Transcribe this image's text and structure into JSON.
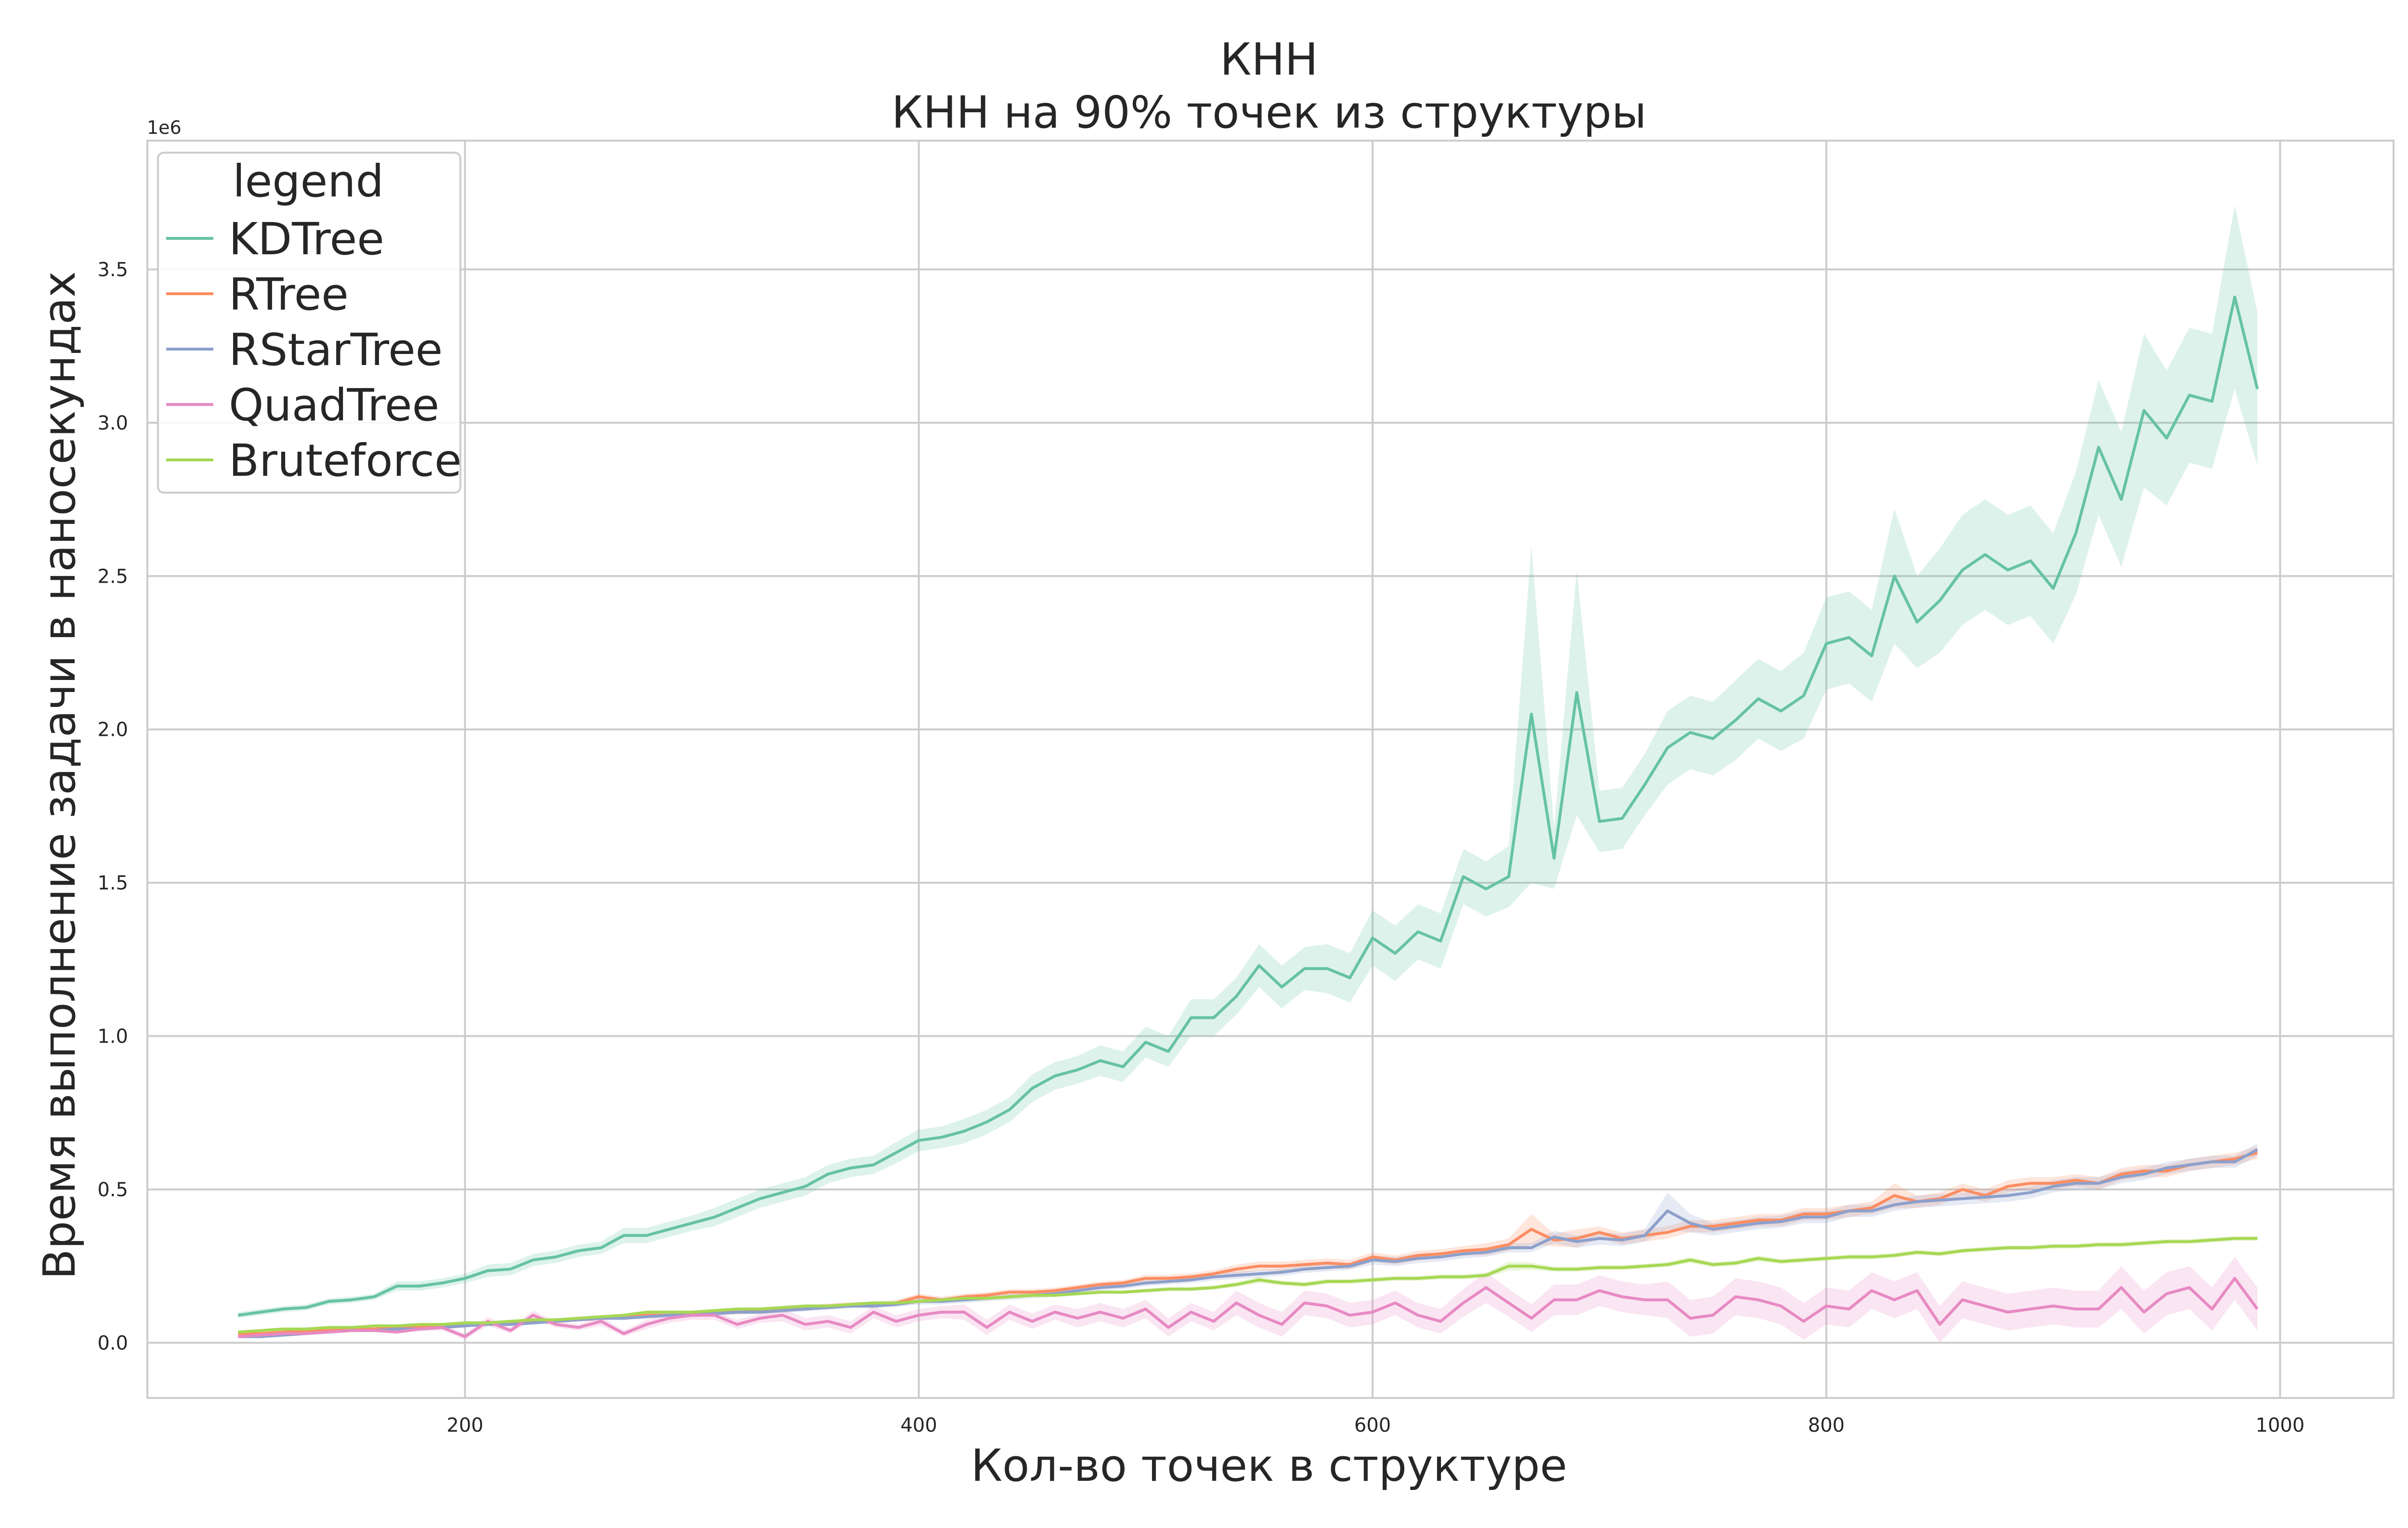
{
  "chart_data": {
    "type": "line",
    "title": "КНН",
    "subtitle": "КНН на 90% точек из структуры",
    "xlabel": "Кол-во точек в структуре",
    "ylabel": "Время выполнение задачи в наносекундах",
    "y_offset_label": "1e6",
    "xlim": [
      60,
      1050
    ],
    "ylim": [
      -0.18,
      3.92
    ],
    "x_ticks": [
      200,
      400,
      600,
      800,
      1000
    ],
    "y_ticks": [
      0.0,
      0.5,
      1.0,
      1.5,
      2.0,
      2.5,
      3.0,
      3.5
    ],
    "x_tick_labels": [
      "200",
      "400",
      "600",
      "800",
      "1000"
    ],
    "y_tick_labels": [
      "0.0",
      "0.5",
      "1.0",
      "1.5",
      "2.0",
      "2.5",
      "3.0",
      "3.5"
    ],
    "grid": true,
    "legend_title": "legend",
    "legend_position": "top-left",
    "x": [
      100,
      110,
      120,
      130,
      140,
      150,
      160,
      170,
      180,
      190,
      200,
      210,
      220,
      230,
      240,
      250,
      260,
      270,
      280,
      290,
      300,
      310,
      320,
      330,
      340,
      350,
      360,
      370,
      380,
      390,
      400,
      410,
      420,
      430,
      440,
      450,
      460,
      470,
      480,
      490,
      500,
      510,
      520,
      530,
      540,
      550,
      560,
      570,
      580,
      590,
      600,
      610,
      620,
      630,
      640,
      650,
      660,
      670,
      680,
      690,
      700,
      710,
      720,
      730,
      740,
      750,
      760,
      770,
      780,
      790,
      800,
      810,
      820,
      830,
      840,
      850,
      860,
      870,
      880,
      890,
      900,
      910,
      920,
      930,
      940,
      950,
      960,
      970,
      980,
      990
    ],
    "series": [
      {
        "name": "KDTree",
        "color": "#66c2a5",
        "values": [
          0.09,
          0.1,
          0.11,
          0.115,
          0.135,
          0.14,
          0.15,
          0.185,
          0.185,
          0.195,
          0.21,
          0.235,
          0.24,
          0.27,
          0.28,
          0.3,
          0.31,
          0.35,
          0.35,
          0.37,
          0.39,
          0.41,
          0.44,
          0.47,
          0.49,
          0.51,
          0.55,
          0.57,
          0.58,
          0.62,
          0.66,
          0.67,
          0.69,
          0.72,
          0.76,
          0.83,
          0.87,
          0.89,
          0.92,
          0.9,
          0.98,
          0.95,
          1.06,
          1.06,
          1.13,
          1.23,
          1.16,
          1.22,
          1.22,
          1.19,
          1.32,
          1.27,
          1.34,
          1.31,
          1.52,
          1.48,
          1.52,
          2.05,
          1.58,
          2.12,
          1.7,
          1.71,
          1.82,
          1.94,
          1.99,
          1.97,
          2.03,
          2.1,
          2.06,
          2.11,
          2.28,
          2.3,
          2.24,
          2.5,
          2.35,
          2.42,
          2.52,
          2.57,
          2.52,
          2.55,
          2.46,
          2.64,
          2.92,
          2.75,
          3.04,
          2.95,
          3.09,
          3.07,
          3.41,
          3.11
        ],
        "ci_width": [
          0.01,
          0.01,
          0.01,
          0.01,
          0.01,
          0.01,
          0.01,
          0.015,
          0.015,
          0.015,
          0.015,
          0.02,
          0.02,
          0.02,
          0.02,
          0.02,
          0.02,
          0.025,
          0.025,
          0.025,
          0.025,
          0.03,
          0.03,
          0.03,
          0.03,
          0.03,
          0.03,
          0.03,
          0.03,
          0.035,
          0.035,
          0.035,
          0.04,
          0.04,
          0.04,
          0.045,
          0.045,
          0.045,
          0.05,
          0.05,
          0.05,
          0.05,
          0.06,
          0.06,
          0.06,
          0.07,
          0.07,
          0.07,
          0.08,
          0.08,
          0.09,
          0.09,
          0.09,
          0.09,
          0.09,
          0.09,
          0.1,
          0.55,
          0.1,
          0.4,
          0.1,
          0.1,
          0.1,
          0.12,
          0.12,
          0.12,
          0.13,
          0.13,
          0.13,
          0.14,
          0.15,
          0.15,
          0.15,
          0.22,
          0.15,
          0.17,
          0.18,
          0.18,
          0.18,
          0.18,
          0.18,
          0.2,
          0.22,
          0.22,
          0.25,
          0.22,
          0.22,
          0.22,
          0.3,
          0.25
        ]
      },
      {
        "name": "RTree",
        "color": "#fc8d62",
        "values": [
          0.03,
          0.03,
          0.035,
          0.04,
          0.04,
          0.045,
          0.045,
          0.05,
          0.05,
          0.055,
          0.06,
          0.065,
          0.065,
          0.07,
          0.07,
          0.075,
          0.08,
          0.085,
          0.09,
          0.09,
          0.095,
          0.1,
          0.1,
          0.105,
          0.11,
          0.115,
          0.12,
          0.125,
          0.125,
          0.13,
          0.15,
          0.14,
          0.15,
          0.155,
          0.165,
          0.165,
          0.17,
          0.18,
          0.19,
          0.195,
          0.21,
          0.21,
          0.215,
          0.225,
          0.24,
          0.25,
          0.25,
          0.255,
          0.26,
          0.255,
          0.28,
          0.27,
          0.285,
          0.29,
          0.3,
          0.305,
          0.32,
          0.37,
          0.335,
          0.34,
          0.36,
          0.34,
          0.35,
          0.36,
          0.38,
          0.38,
          0.39,
          0.4,
          0.4,
          0.42,
          0.42,
          0.43,
          0.44,
          0.48,
          0.46,
          0.47,
          0.5,
          0.48,
          0.51,
          0.52,
          0.52,
          0.53,
          0.52,
          0.55,
          0.56,
          0.56,
          0.58,
          0.59,
          0.6,
          0.62
        ],
        "ci_width": [
          0.005,
          0.005,
          0.005,
          0.005,
          0.005,
          0.005,
          0.005,
          0.005,
          0.005,
          0.005,
          0.006,
          0.006,
          0.006,
          0.006,
          0.006,
          0.006,
          0.007,
          0.007,
          0.007,
          0.007,
          0.007,
          0.007,
          0.008,
          0.008,
          0.008,
          0.008,
          0.008,
          0.008,
          0.008,
          0.01,
          0.01,
          0.01,
          0.01,
          0.01,
          0.01,
          0.01,
          0.01,
          0.01,
          0.01,
          0.01,
          0.012,
          0.012,
          0.012,
          0.012,
          0.015,
          0.015,
          0.015,
          0.015,
          0.015,
          0.015,
          0.015,
          0.015,
          0.015,
          0.015,
          0.015,
          0.02,
          0.02,
          0.05,
          0.02,
          0.03,
          0.02,
          0.02,
          0.02,
          0.02,
          0.02,
          0.02,
          0.02,
          0.02,
          0.02,
          0.02,
          0.02,
          0.02,
          0.02,
          0.04,
          0.02,
          0.02,
          0.02,
          0.02,
          0.02,
          0.02,
          0.02,
          0.02,
          0.02,
          0.02,
          0.02,
          0.02,
          0.02,
          0.02,
          0.02,
          0.02
        ]
      },
      {
        "name": "RStarTree",
        "color": "#8da0cb",
        "values": [
          0.02,
          0.02,
          0.025,
          0.03,
          0.035,
          0.04,
          0.04,
          0.045,
          0.045,
          0.05,
          0.055,
          0.06,
          0.06,
          0.065,
          0.07,
          0.075,
          0.08,
          0.08,
          0.085,
          0.09,
          0.09,
          0.095,
          0.1,
          0.1,
          0.105,
          0.11,
          0.115,
          0.12,
          0.12,
          0.125,
          0.135,
          0.135,
          0.14,
          0.145,
          0.15,
          0.155,
          0.16,
          0.17,
          0.18,
          0.185,
          0.195,
          0.2,
          0.205,
          0.215,
          0.22,
          0.225,
          0.23,
          0.24,
          0.245,
          0.25,
          0.27,
          0.265,
          0.275,
          0.28,
          0.29,
          0.295,
          0.31,
          0.31,
          0.345,
          0.33,
          0.34,
          0.335,
          0.35,
          0.43,
          0.39,
          0.37,
          0.38,
          0.39,
          0.395,
          0.41,
          0.41,
          0.43,
          0.43,
          0.45,
          0.46,
          0.465,
          0.47,
          0.475,
          0.48,
          0.49,
          0.51,
          0.52,
          0.52,
          0.54,
          0.55,
          0.57,
          0.58,
          0.59,
          0.59,
          0.63
        ],
        "ci_width": [
          0.005,
          0.005,
          0.005,
          0.005,
          0.005,
          0.005,
          0.005,
          0.005,
          0.005,
          0.005,
          0.005,
          0.005,
          0.006,
          0.006,
          0.006,
          0.006,
          0.006,
          0.006,
          0.006,
          0.007,
          0.007,
          0.007,
          0.007,
          0.007,
          0.008,
          0.008,
          0.008,
          0.008,
          0.008,
          0.008,
          0.01,
          0.01,
          0.01,
          0.01,
          0.01,
          0.01,
          0.01,
          0.01,
          0.01,
          0.01,
          0.01,
          0.01,
          0.01,
          0.012,
          0.012,
          0.012,
          0.012,
          0.012,
          0.012,
          0.012,
          0.015,
          0.015,
          0.015,
          0.015,
          0.015,
          0.015,
          0.015,
          0.015,
          0.02,
          0.02,
          0.02,
          0.02,
          0.02,
          0.06,
          0.03,
          0.02,
          0.02,
          0.02,
          0.02,
          0.02,
          0.02,
          0.02,
          0.02,
          0.02,
          0.02,
          0.02,
          0.02,
          0.02,
          0.02,
          0.02,
          0.02,
          0.02,
          0.02,
          0.02,
          0.02,
          0.02,
          0.02,
          0.02,
          0.02,
          0.02
        ]
      },
      {
        "name": "QuadTree",
        "color": "#e78ac3",
        "values": [
          0.02,
          0.025,
          0.03,
          0.03,
          0.035,
          0.04,
          0.04,
          0.035,
          0.045,
          0.05,
          0.02,
          0.07,
          0.04,
          0.09,
          0.06,
          0.05,
          0.07,
          0.03,
          0.06,
          0.08,
          0.09,
          0.09,
          0.06,
          0.08,
          0.09,
          0.06,
          0.07,
          0.05,
          0.1,
          0.07,
          0.09,
          0.1,
          0.1,
          0.05,
          0.1,
          0.07,
          0.1,
          0.08,
          0.1,
          0.08,
          0.11,
          0.05,
          0.1,
          0.07,
          0.13,
          0.09,
          0.06,
          0.13,
          0.12,
          0.09,
          0.1,
          0.13,
          0.09,
          0.07,
          0.13,
          0.18,
          0.13,
          0.08,
          0.14,
          0.14,
          0.17,
          0.15,
          0.14,
          0.14,
          0.08,
          0.09,
          0.15,
          0.14,
          0.12,
          0.07,
          0.12,
          0.11,
          0.17,
          0.14,
          0.17,
          0.06,
          0.14,
          0.12,
          0.1,
          0.11,
          0.12,
          0.11,
          0.11,
          0.18,
          0.1,
          0.16,
          0.18,
          0.11,
          0.21,
          0.11
        ],
        "ci_width": [
          0.005,
          0.005,
          0.005,
          0.005,
          0.005,
          0.005,
          0.005,
          0.005,
          0.008,
          0.01,
          0.01,
          0.015,
          0.01,
          0.015,
          0.01,
          0.01,
          0.015,
          0.01,
          0.015,
          0.015,
          0.015,
          0.015,
          0.015,
          0.015,
          0.02,
          0.02,
          0.02,
          0.02,
          0.02,
          0.02,
          0.02,
          0.02,
          0.025,
          0.025,
          0.025,
          0.025,
          0.025,
          0.03,
          0.03,
          0.03,
          0.03,
          0.03,
          0.03,
          0.03,
          0.04,
          0.04,
          0.04,
          0.04,
          0.04,
          0.04,
          0.04,
          0.04,
          0.04,
          0.04,
          0.045,
          0.05,
          0.045,
          0.045,
          0.05,
          0.05,
          0.05,
          0.05,
          0.05,
          0.06,
          0.06,
          0.06,
          0.06,
          0.06,
          0.06,
          0.06,
          0.06,
          0.06,
          0.06,
          0.06,
          0.06,
          0.06,
          0.06,
          0.06,
          0.06,
          0.06,
          0.06,
          0.06,
          0.06,
          0.07,
          0.07,
          0.07,
          0.07,
          0.07,
          0.07,
          0.07
        ]
      },
      {
        "name": "Bruteforce",
        "color": "#a6d854",
        "values": [
          0.035,
          0.04,
          0.045,
          0.045,
          0.05,
          0.05,
          0.055,
          0.055,
          0.06,
          0.06,
          0.065,
          0.065,
          0.07,
          0.075,
          0.075,
          0.08,
          0.085,
          0.09,
          0.1,
          0.1,
          0.1,
          0.105,
          0.11,
          0.11,
          0.115,
          0.12,
          0.12,
          0.125,
          0.13,
          0.13,
          0.135,
          0.14,
          0.145,
          0.145,
          0.15,
          0.155,
          0.155,
          0.16,
          0.165,
          0.165,
          0.17,
          0.175,
          0.175,
          0.18,
          0.19,
          0.205,
          0.195,
          0.19,
          0.2,
          0.2,
          0.205,
          0.21,
          0.21,
          0.215,
          0.215,
          0.22,
          0.25,
          0.25,
          0.24,
          0.24,
          0.245,
          0.245,
          0.25,
          0.255,
          0.27,
          0.255,
          0.26,
          0.275,
          0.265,
          0.27,
          0.275,
          0.28,
          0.28,
          0.285,
          0.295,
          0.29,
          0.3,
          0.305,
          0.31,
          0.31,
          0.315,
          0.315,
          0.32,
          0.32,
          0.325,
          0.33,
          0.33,
          0.335,
          0.34,
          0.34
        ],
        "ci_width": [
          0.003,
          0.003,
          0.003,
          0.003,
          0.003,
          0.003,
          0.003,
          0.003,
          0.003,
          0.003,
          0.004,
          0.004,
          0.004,
          0.004,
          0.004,
          0.004,
          0.004,
          0.004,
          0.005,
          0.005,
          0.005,
          0.005,
          0.005,
          0.005,
          0.005,
          0.005,
          0.005,
          0.005,
          0.005,
          0.005,
          0.006,
          0.006,
          0.006,
          0.006,
          0.006,
          0.006,
          0.006,
          0.006,
          0.006,
          0.006,
          0.007,
          0.007,
          0.007,
          0.007,
          0.008,
          0.01,
          0.008,
          0.008,
          0.008,
          0.008,
          0.008,
          0.008,
          0.008,
          0.008,
          0.008,
          0.008,
          0.015,
          0.012,
          0.008,
          0.008,
          0.008,
          0.008,
          0.008,
          0.008,
          0.01,
          0.008,
          0.008,
          0.01,
          0.008,
          0.008,
          0.008,
          0.008,
          0.008,
          0.008,
          0.008,
          0.008,
          0.008,
          0.008,
          0.008,
          0.008,
          0.008,
          0.008,
          0.008,
          0.008,
          0.008,
          0.008,
          0.008,
          0.008,
          0.008,
          0.008
        ]
      }
    ]
  }
}
